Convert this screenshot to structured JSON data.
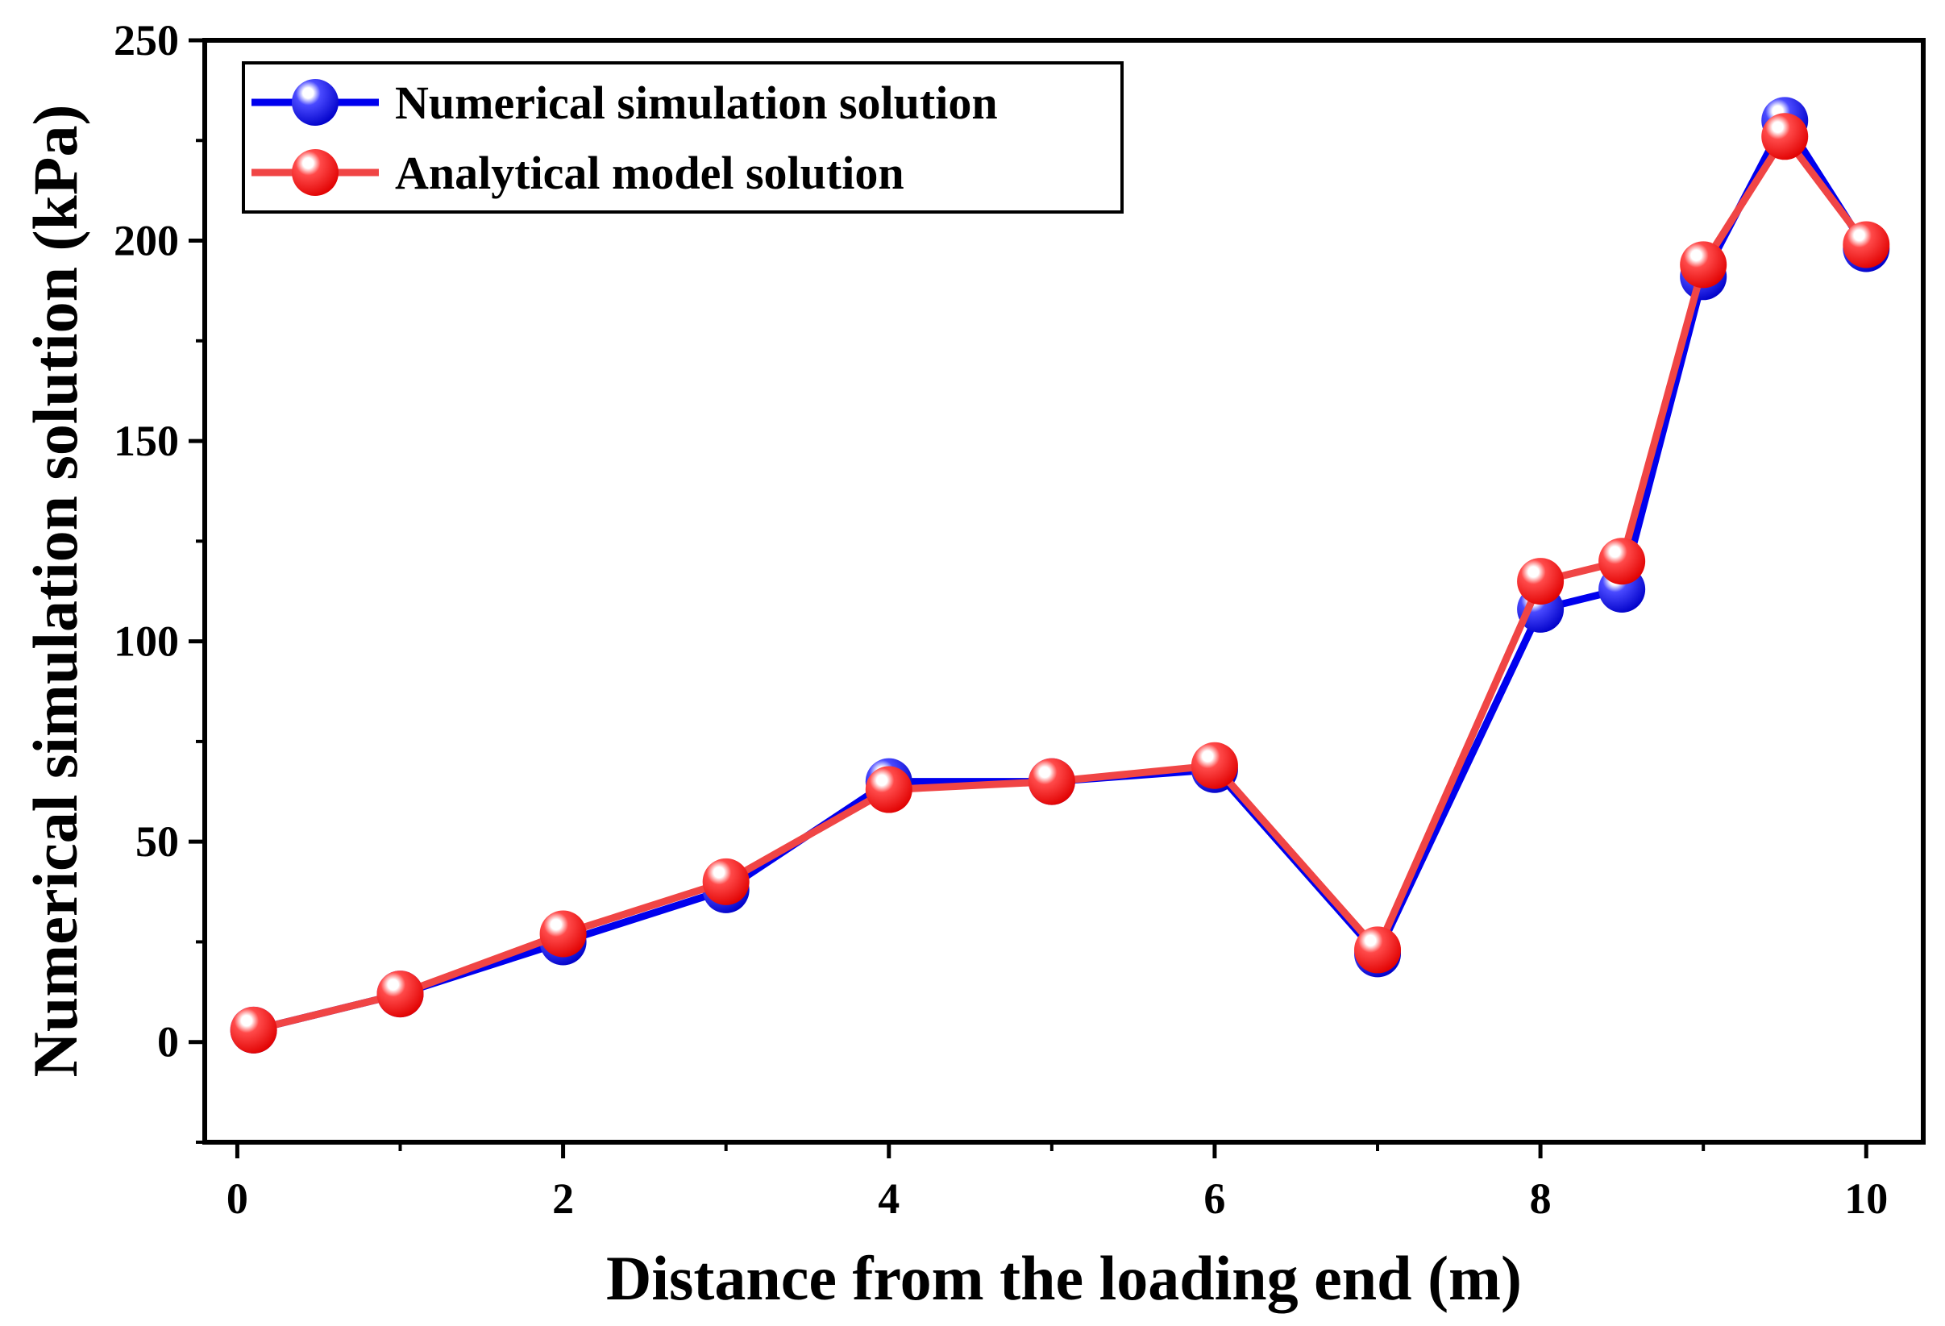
{
  "chart_data": {
    "type": "line",
    "xlabel": "Distance from the loading end (m)",
    "ylabel": "Numerical simulation solution (kPa)",
    "xlim": [
      -0.2,
      10.35
    ],
    "ylim": [
      -25,
      250
    ],
    "xticks": [
      0,
      2,
      4,
      6,
      8,
      10
    ],
    "xticks_minor": [
      1,
      3,
      5,
      7,
      9
    ],
    "yticks": [
      0,
      50,
      100,
      150,
      200,
      250
    ],
    "grid": false,
    "legend_position": "top-left",
    "series": [
      {
        "name": "Numerical simulation solution",
        "color": "#0000ee",
        "x": [
          0.1,
          1,
          2,
          3,
          4,
          5,
          6,
          7,
          8,
          8.5,
          9,
          9.5,
          10
        ],
        "values": [
          3,
          12,
          25,
          38,
          65,
          65,
          68,
          22,
          108,
          113,
          191,
          230,
          198
        ]
      },
      {
        "name": "Analytical model solution",
        "color": "#f04545",
        "x": [
          0.1,
          1,
          2,
          3,
          4,
          5,
          6,
          7,
          8,
          8.5,
          9,
          9.5,
          10
        ],
        "values": [
          3,
          12,
          27,
          40,
          63,
          65,
          69,
          23,
          115,
          120,
          194,
          226,
          199
        ]
      }
    ]
  }
}
